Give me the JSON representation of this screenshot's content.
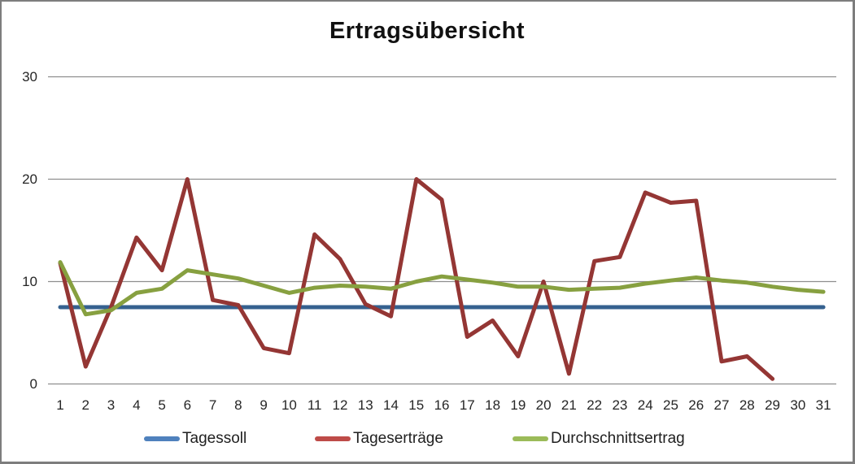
{
  "window": {
    "background": "#ffffff",
    "border_color": "#7d7d7d"
  },
  "colors": {
    "grid": "#8e8e8e",
    "tick_text": "#262626",
    "legend_text": "#1f1f1f",
    "title_text": "#111111"
  },
  "chart_data": {
    "type": "line",
    "title": "Ertragsübersicht",
    "xlabel": "",
    "ylabel": "",
    "ylim": [
      0,
      30
    ],
    "yticks": [
      0,
      10,
      20,
      30
    ],
    "grid": true,
    "legend_position": "bottom",
    "x_categories": [
      "1",
      "2",
      "3",
      "4",
      "5",
      "6",
      "7",
      "8",
      "9",
      "10",
      "11",
      "12",
      "13",
      "14",
      "15",
      "16",
      "17",
      "18",
      "19",
      "20",
      "21",
      "22",
      "23",
      "24",
      "25",
      "26",
      "27",
      "28",
      "29",
      "30",
      "31"
    ],
    "series": [
      {
        "name": "Tagessoll",
        "color": "#35618F",
        "legend_color": "#4F81BD",
        "values": [
          7.5,
          7.5,
          7.5,
          7.5,
          7.5,
          7.5,
          7.5,
          7.5,
          7.5,
          7.5,
          7.5,
          7.5,
          7.5,
          7.5,
          7.5,
          7.5,
          7.5,
          7.5,
          7.5,
          7.5,
          7.5,
          7.5,
          7.5,
          7.5,
          7.5,
          7.5,
          7.5,
          7.5,
          7.5,
          7.5,
          7.5
        ]
      },
      {
        "name": "Tageserträge",
        "color": "#943634",
        "legend_color": "#BE4B48",
        "values": [
          11.8,
          1.7,
          7.5,
          14.3,
          11.1,
          20,
          8.2,
          7.7,
          3.5,
          3.0,
          14.6,
          12.2,
          7.8,
          6.6,
          20,
          18,
          4.6,
          6.2,
          2.7,
          10,
          1.0,
          12,
          12.4,
          18.7,
          17.7,
          17.9,
          2.2,
          2.7,
          0.5,
          null,
          null
        ]
      },
      {
        "name": "Durchschnittsertrag",
        "color": "#87A040",
        "legend_color": "#9BBB59",
        "values": [
          11.9,
          6.8,
          7.2,
          8.9,
          9.3,
          11.1,
          10.7,
          10.3,
          9.6,
          8.9,
          9.4,
          9.6,
          9.5,
          9.3,
          10.0,
          10.5,
          10.2,
          9.9,
          9.5,
          9.5,
          9.2,
          9.3,
          9.4,
          9.8,
          10.1,
          10.4,
          10.1,
          9.9,
          9.5,
          9.2,
          9.0
        ]
      }
    ]
  }
}
